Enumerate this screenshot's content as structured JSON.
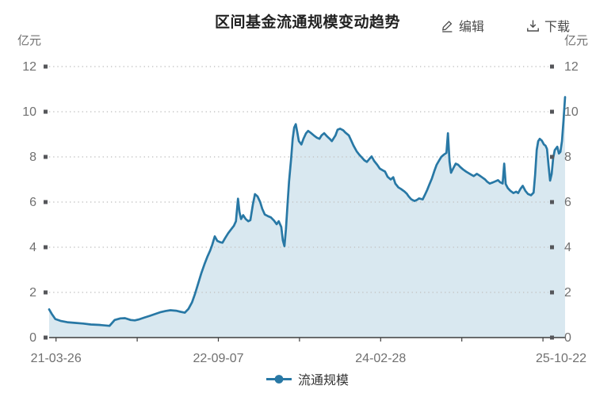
{
  "header": {
    "title": "区间基金流通规模变动趋势",
    "edit_label": "编辑",
    "download_label": "下载"
  },
  "axes": {
    "unit_left": "亿元",
    "unit_right": "亿元"
  },
  "legend": {
    "label": "流通规模"
  },
  "colors": {
    "line": "#2878a5",
    "fill": "#d9e8f0",
    "grid": "#c6c6c6",
    "axis": "#3f3f3f",
    "tick_square": "#55565a",
    "label": "#707070",
    "title": "#222222",
    "button": "#4b4b4b"
  },
  "chart_data": {
    "type": "area",
    "title": "区间基金流通规模变动趋势",
    "unit": "亿元",
    "xlabel": "",
    "ylabel": "亿元",
    "ylim": [
      0,
      12
    ],
    "y_ticks": [
      0,
      2,
      4,
      6,
      8,
      10,
      12
    ],
    "x_tick_labels": [
      "21-03-26",
      "22-09-07",
      "24-02-28",
      "25-10-22"
    ],
    "x_range": [
      "21-03-26",
      "25-10-22"
    ],
    "grid": "dotted",
    "legend_position": "bottom",
    "series": [
      {
        "name": "流通规模",
        "color": "#2878a5",
        "points": [
          [
            0.0,
            1.25
          ],
          [
            0.005,
            1.05
          ],
          [
            0.012,
            0.82
          ],
          [
            0.022,
            0.74
          ],
          [
            0.035,
            0.68
          ],
          [
            0.051,
            0.65
          ],
          [
            0.066,
            0.62
          ],
          [
            0.081,
            0.58
          ],
          [
            0.097,
            0.56
          ],
          [
            0.117,
            0.52
          ],
          [
            0.127,
            0.78
          ],
          [
            0.138,
            0.85
          ],
          [
            0.147,
            0.86
          ],
          [
            0.158,
            0.78
          ],
          [
            0.166,
            0.76
          ],
          [
            0.175,
            0.81
          ],
          [
            0.184,
            0.88
          ],
          [
            0.195,
            0.96
          ],
          [
            0.206,
            1.05
          ],
          [
            0.215,
            1.12
          ],
          [
            0.226,
            1.18
          ],
          [
            0.235,
            1.21
          ],
          [
            0.246,
            1.19
          ],
          [
            0.255,
            1.14
          ],
          [
            0.263,
            1.1
          ],
          [
            0.27,
            1.27
          ],
          [
            0.277,
            1.56
          ],
          [
            0.283,
            1.95
          ],
          [
            0.289,
            2.4
          ],
          [
            0.295,
            2.85
          ],
          [
            0.301,
            3.25
          ],
          [
            0.307,
            3.6
          ],
          [
            0.312,
            3.85
          ],
          [
            0.316,
            4.1
          ],
          [
            0.321,
            4.48
          ],
          [
            0.326,
            4.28
          ],
          [
            0.332,
            4.22
          ],
          [
            0.336,
            4.2
          ],
          [
            0.341,
            4.4
          ],
          [
            0.347,
            4.62
          ],
          [
            0.353,
            4.8
          ],
          [
            0.358,
            4.95
          ],
          [
            0.362,
            5.15
          ],
          [
            0.366,
            6.15
          ],
          [
            0.369,
            5.55
          ],
          [
            0.372,
            5.25
          ],
          [
            0.376,
            5.42
          ],
          [
            0.381,
            5.25
          ],
          [
            0.386,
            5.15
          ],
          [
            0.39,
            5.2
          ],
          [
            0.395,
            5.9
          ],
          [
            0.399,
            6.35
          ],
          [
            0.404,
            6.25
          ],
          [
            0.409,
            6.0
          ],
          [
            0.413,
            5.7
          ],
          [
            0.418,
            5.45
          ],
          [
            0.424,
            5.38
          ],
          [
            0.43,
            5.32
          ],
          [
            0.436,
            5.18
          ],
          [
            0.441,
            5.02
          ],
          [
            0.445,
            5.15
          ],
          [
            0.45,
            4.9
          ],
          [
            0.453,
            4.3
          ],
          [
            0.456,
            4.05
          ],
          [
            0.459,
            4.8
          ],
          [
            0.462,
            5.9
          ],
          [
            0.465,
            6.9
          ],
          [
            0.469,
            7.9
          ],
          [
            0.472,
            8.8
          ],
          [
            0.475,
            9.3
          ],
          [
            0.478,
            9.45
          ],
          [
            0.481,
            9.1
          ],
          [
            0.484,
            8.7
          ],
          [
            0.489,
            8.55
          ],
          [
            0.493,
            8.8
          ],
          [
            0.498,
            9.05
          ],
          [
            0.502,
            9.15
          ],
          [
            0.508,
            9.05
          ],
          [
            0.513,
            8.95
          ],
          [
            0.519,
            8.85
          ],
          [
            0.524,
            8.8
          ],
          [
            0.528,
            8.95
          ],
          [
            0.533,
            9.05
          ],
          [
            0.539,
            8.9
          ],
          [
            0.544,
            8.8
          ],
          [
            0.548,
            8.7
          ],
          [
            0.555,
            8.95
          ],
          [
            0.559,
            9.2
          ],
          [
            0.564,
            9.25
          ],
          [
            0.57,
            9.18
          ],
          [
            0.574,
            9.08
          ],
          [
            0.581,
            8.95
          ],
          [
            0.585,
            8.75
          ],
          [
            0.59,
            8.5
          ],
          [
            0.596,
            8.25
          ],
          [
            0.601,
            8.1
          ],
          [
            0.605,
            8.0
          ],
          [
            0.611,
            7.85
          ],
          [
            0.616,
            7.78
          ],
          [
            0.621,
            7.92
          ],
          [
            0.625,
            8.02
          ],
          [
            0.63,
            7.82
          ],
          [
            0.636,
            7.65
          ],
          [
            0.641,
            7.48
          ],
          [
            0.647,
            7.4
          ],
          [
            0.651,
            7.35
          ],
          [
            0.656,
            7.12
          ],
          [
            0.662,
            7.0
          ],
          [
            0.667,
            7.1
          ],
          [
            0.671,
            6.82
          ],
          [
            0.677,
            6.65
          ],
          [
            0.682,
            6.58
          ],
          [
            0.688,
            6.48
          ],
          [
            0.693,
            6.38
          ],
          [
            0.697,
            6.25
          ],
          [
            0.702,
            6.12
          ],
          [
            0.708,
            6.05
          ],
          [
            0.713,
            6.1
          ],
          [
            0.717,
            6.16
          ],
          [
            0.724,
            6.12
          ],
          [
            0.728,
            6.3
          ],
          [
            0.733,
            6.55
          ],
          [
            0.737,
            6.78
          ],
          [
            0.742,
            7.05
          ],
          [
            0.747,
            7.4
          ],
          [
            0.751,
            7.65
          ],
          [
            0.756,
            7.85
          ],
          [
            0.76,
            8.0
          ],
          [
            0.765,
            8.1
          ],
          [
            0.77,
            8.18
          ],
          [
            0.773,
            9.05
          ],
          [
            0.776,
            7.8
          ],
          [
            0.779,
            7.3
          ],
          [
            0.783,
            7.48
          ],
          [
            0.788,
            7.7
          ],
          [
            0.793,
            7.65
          ],
          [
            0.797,
            7.55
          ],
          [
            0.802,
            7.45
          ],
          [
            0.808,
            7.35
          ],
          [
            0.813,
            7.28
          ],
          [
            0.819,
            7.2
          ],
          [
            0.823,
            7.15
          ],
          [
            0.829,
            7.25
          ],
          [
            0.834,
            7.18
          ],
          [
            0.839,
            7.1
          ],
          [
            0.845,
            7.0
          ],
          [
            0.849,
            6.9
          ],
          [
            0.854,
            6.82
          ],
          [
            0.86,
            6.87
          ],
          [
            0.865,
            6.92
          ],
          [
            0.87,
            6.97
          ],
          [
            0.874,
            6.88
          ],
          [
            0.879,
            6.82
          ],
          [
            0.882,
            7.7
          ],
          [
            0.885,
            6.8
          ],
          [
            0.889,
            6.62
          ],
          [
            0.894,
            6.5
          ],
          [
            0.9,
            6.4
          ],
          [
            0.905,
            6.46
          ],
          [
            0.909,
            6.4
          ],
          [
            0.914,
            6.6
          ],
          [
            0.918,
            6.72
          ],
          [
            0.923,
            6.5
          ],
          [
            0.928,
            6.36
          ],
          [
            0.934,
            6.3
          ],
          [
            0.939,
            6.42
          ],
          [
            0.942,
            7.2
          ],
          [
            0.945,
            8.3
          ],
          [
            0.948,
            8.7
          ],
          [
            0.951,
            8.8
          ],
          [
            0.955,
            8.72
          ],
          [
            0.959,
            8.55
          ],
          [
            0.962,
            8.5
          ],
          [
            0.965,
            8.35
          ],
          [
            0.968,
            7.6
          ],
          [
            0.971,
            6.95
          ],
          [
            0.974,
            7.25
          ],
          [
            0.977,
            7.95
          ],
          [
            0.98,
            8.3
          ],
          [
            0.985,
            8.45
          ],
          [
            0.988,
            8.15
          ],
          [
            0.991,
            8.22
          ],
          [
            0.994,
            8.7
          ],
          [
            0.997,
            9.6
          ],
          [
            1.0,
            10.65
          ]
        ]
      }
    ]
  }
}
